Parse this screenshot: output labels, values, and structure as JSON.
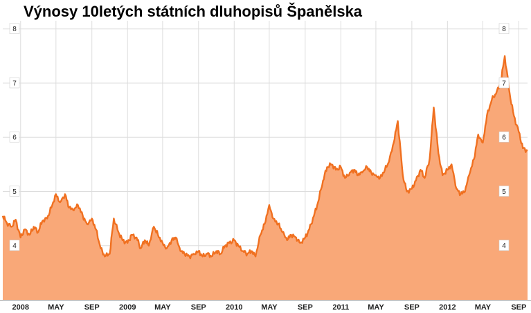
{
  "chart_data": {
    "type": "area",
    "title": "Výnosy 10letých státních dluhopisů Španělska",
    "xlabel": "",
    "ylabel": "",
    "ylim": [
      3.0,
      8.15
    ],
    "y_ticks": [
      4,
      5,
      6,
      7,
      8
    ],
    "x_range": [
      "2007-11",
      "2012-10"
    ],
    "x_ticks": [
      {
        "label": "2008",
        "x": "2008-01"
      },
      {
        "label": "MAY",
        "x": "2008-05"
      },
      {
        "label": "SEP",
        "x": "2008-09"
      },
      {
        "label": "2009",
        "x": "2009-01"
      },
      {
        "label": "MAY",
        "x": "2009-05"
      },
      {
        "label": "SEP",
        "x": "2009-09"
      },
      {
        "label": "2010",
        "x": "2010-01"
      },
      {
        "label": "MAY",
        "x": "2010-05"
      },
      {
        "label": "SEP",
        "x": "2010-09"
      },
      {
        "label": "2011",
        "x": "2011-01"
      },
      {
        "label": "MAY",
        "x": "2011-05"
      },
      {
        "label": "SEP",
        "x": "2011-09"
      },
      {
        "label": "2012",
        "x": "2012-01"
      },
      {
        "label": "MAY",
        "x": "2012-05"
      },
      {
        "label": "SEP",
        "x": "2012-09"
      }
    ],
    "grid": true,
    "colors": {
      "line": "#f07020",
      "fill": "#f9a878",
      "grid": "#dddddd",
      "axis": "#9a9a9a"
    },
    "series": [
      {
        "name": "",
        "x": [
          "2007-11-01",
          "2007-11-15",
          "2007-12-01",
          "2007-12-15",
          "2008-01-01",
          "2008-01-15",
          "2008-02-01",
          "2008-02-15",
          "2008-03-01",
          "2008-03-15",
          "2008-04-01",
          "2008-04-15",
          "2008-05-01",
          "2008-05-15",
          "2008-06-01",
          "2008-06-15",
          "2008-07-01",
          "2008-07-15",
          "2008-08-01",
          "2008-08-15",
          "2008-09-01",
          "2008-09-15",
          "2008-10-01",
          "2008-10-15",
          "2008-11-01",
          "2008-11-15",
          "2008-12-01",
          "2008-12-15",
          "2009-01-01",
          "2009-01-15",
          "2009-02-01",
          "2009-02-15",
          "2009-03-01",
          "2009-03-15",
          "2009-04-01",
          "2009-04-15",
          "2009-05-01",
          "2009-05-15",
          "2009-06-01",
          "2009-06-15",
          "2009-07-01",
          "2009-07-15",
          "2009-08-01",
          "2009-08-15",
          "2009-09-01",
          "2009-09-15",
          "2009-10-01",
          "2009-10-15",
          "2009-11-01",
          "2009-11-15",
          "2009-12-01",
          "2009-12-15",
          "2010-01-01",
          "2010-01-15",
          "2010-02-01",
          "2010-02-15",
          "2010-03-01",
          "2010-03-15",
          "2010-04-01",
          "2010-04-15",
          "2010-05-01",
          "2010-05-15",
          "2010-06-01",
          "2010-06-15",
          "2010-07-01",
          "2010-07-15",
          "2010-08-01",
          "2010-08-15",
          "2010-09-01",
          "2010-09-15",
          "2010-10-01",
          "2010-10-15",
          "2010-11-01",
          "2010-11-15",
          "2010-12-01",
          "2010-12-15",
          "2011-01-01",
          "2011-01-15",
          "2011-02-01",
          "2011-02-15",
          "2011-03-01",
          "2011-03-15",
          "2011-04-01",
          "2011-04-15",
          "2011-05-01",
          "2011-05-15",
          "2011-06-01",
          "2011-06-15",
          "2011-07-01",
          "2011-07-15",
          "2011-08-01",
          "2011-08-15",
          "2011-09-01",
          "2011-09-15",
          "2011-10-01",
          "2011-10-15",
          "2011-11-01",
          "2011-11-15",
          "2011-12-01",
          "2011-12-15",
          "2012-01-01",
          "2012-01-15",
          "2012-02-01",
          "2012-02-15",
          "2012-03-01",
          "2012-03-15",
          "2012-04-01",
          "2012-04-15",
          "2012-05-01",
          "2012-05-15",
          "2012-06-01",
          "2012-06-15",
          "2012-07-01",
          "2012-07-15",
          "2012-08-01",
          "2012-08-15",
          "2012-09-01",
          "2012-09-15",
          "2012-10-01"
        ],
        "values": [
          4.55,
          4.42,
          4.35,
          4.48,
          4.15,
          4.3,
          4.2,
          4.35,
          4.25,
          4.45,
          4.5,
          4.7,
          4.95,
          4.8,
          4.95,
          4.7,
          4.65,
          4.75,
          4.55,
          4.4,
          4.5,
          4.3,
          3.95,
          3.8,
          3.85,
          4.5,
          4.25,
          4.1,
          4.05,
          4.2,
          4.15,
          3.95,
          4.1,
          4.0,
          4.35,
          4.2,
          4.05,
          3.95,
          4.1,
          4.15,
          3.9,
          3.85,
          3.8,
          3.85,
          3.9,
          3.8,
          3.85,
          3.8,
          3.9,
          3.85,
          4.0,
          4.05,
          4.1,
          4.0,
          3.9,
          3.85,
          3.9,
          3.8,
          4.2,
          4.4,
          4.75,
          4.5,
          4.4,
          4.25,
          4.1,
          4.2,
          4.15,
          4.05,
          4.15,
          4.3,
          4.55,
          4.8,
          5.2,
          5.45,
          5.5,
          5.4,
          5.45,
          5.25,
          5.35,
          5.4,
          5.3,
          5.35,
          5.45,
          5.35,
          5.3,
          5.25,
          5.4,
          5.55,
          5.9,
          6.3,
          5.3,
          5.0,
          5.05,
          5.2,
          5.4,
          5.25,
          5.6,
          6.55,
          5.7,
          5.3,
          5.4,
          5.5,
          5.05,
          4.95,
          5.0,
          5.3,
          5.6,
          6.05,
          5.9,
          6.4,
          6.7,
          6.8,
          7.0,
          7.5,
          6.8,
          6.4,
          6.1,
          5.8,
          5.75
        ]
      }
    ]
  }
}
